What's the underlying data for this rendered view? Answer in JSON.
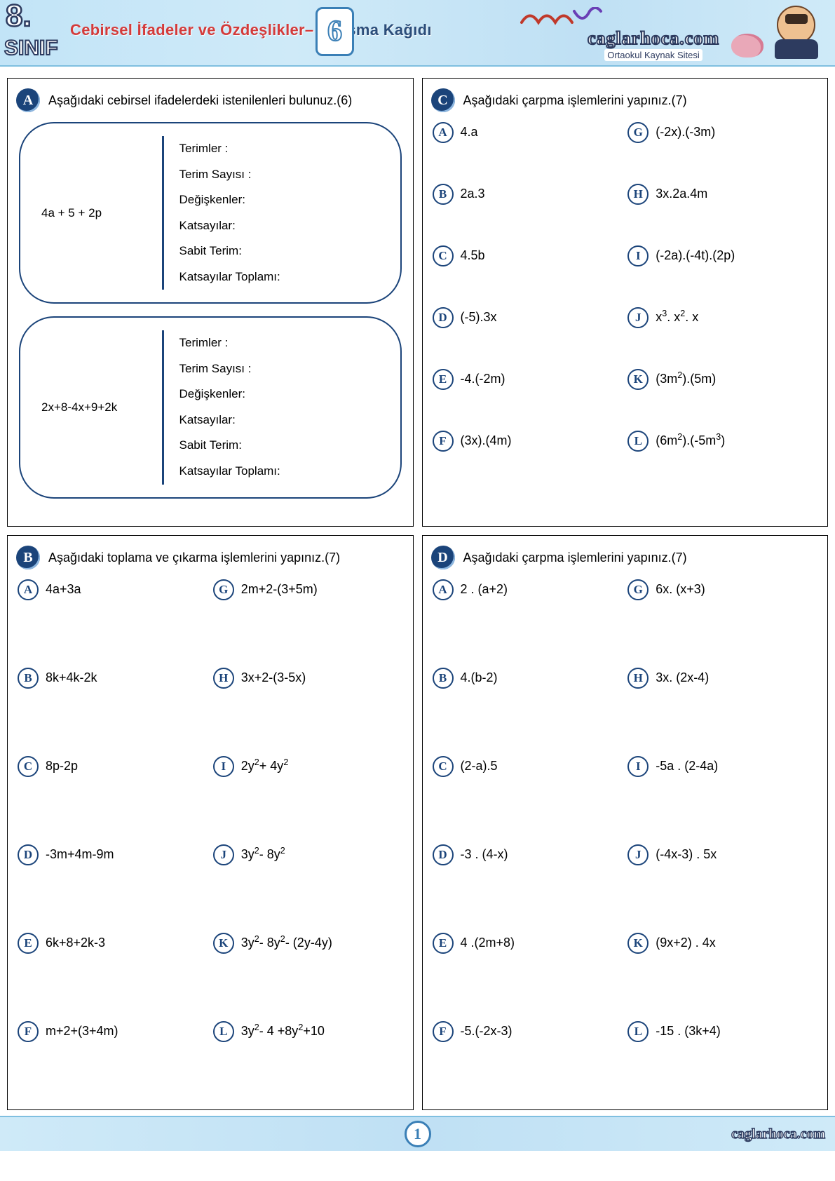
{
  "header": {
    "grade": "8.",
    "class": "SINIF",
    "title_red": "Cebirsel İfadeler ve Özdeşlikler–",
    "title_nav": " Çalışma Kağıdı",
    "sheet_number": "6",
    "site_name": "caglarhoca.com",
    "site_tag": "Ortaokul Kaynak Sitesi"
  },
  "panel_A": {
    "letter": "A",
    "title": "Aşağıdaki cebirsel ifadelerdeki istenilenleri bulunuz.(6)",
    "field_labels": {
      "terimler": "Terimler :",
      "terim_sayisi": "Terim Sayısı :",
      "degiskenler": "Değişkenler:",
      "katsayilar": "Katsayılar:",
      "sabit_terim": "Sabit Terim:",
      "kats_toplam": "Katsayılar Toplamı:"
    },
    "exprs": [
      "4a + 5 + 2p",
      "2x+8-4x+9+2k"
    ]
  },
  "panel_B": {
    "letter": "B",
    "title": "Aşağıdaki toplama ve çıkarma işlemlerini yapınız.(7)",
    "items": [
      {
        "k": "A",
        "t": "4a+3a"
      },
      {
        "k": "G",
        "t": "2m+2-(3+5m)"
      },
      {
        "k": "B",
        "t": "8k+4k-2k"
      },
      {
        "k": "H",
        "t": "3x+2-(3-5x)"
      },
      {
        "k": "C",
        "t": "8p-2p"
      },
      {
        "k": "I",
        "t": "2y²+ 4y²"
      },
      {
        "k": "D",
        "t": "-3m+4m-9m"
      },
      {
        "k": "J",
        "t": "3y²- 8y²"
      },
      {
        "k": "E",
        "t": "6k+8+2k-3"
      },
      {
        "k": "K",
        "t": "3y²- 8y²- (2y-4y)"
      },
      {
        "k": "F",
        "t": "m+2+(3+4m)"
      },
      {
        "k": "L",
        "t": "3y²- 4 +8y²+10"
      }
    ]
  },
  "panel_C": {
    "letter": "C",
    "title": "Aşağıdaki çarpma işlemlerini yapınız.(7)",
    "items": [
      {
        "k": "A",
        "t": "4.a"
      },
      {
        "k": "G",
        "t": "(-2x).(-3m)"
      },
      {
        "k": "B",
        "t": "2a.3"
      },
      {
        "k": "H",
        "t": "3x.2a.4m"
      },
      {
        "k": "C",
        "t": "4.5b"
      },
      {
        "k": "I",
        "t": "(-2a).(-4t).(2p)"
      },
      {
        "k": "D",
        "t": "(-5).3x"
      },
      {
        "k": "J",
        "t": "x³. x². x"
      },
      {
        "k": "E",
        "t": "-4.(-2m)"
      },
      {
        "k": "K",
        "t": "(3m²).(5m)"
      },
      {
        "k": "F",
        "t": "(3x).(4m)"
      },
      {
        "k": "L",
        "t": "(6m²).(-5m³)"
      }
    ]
  },
  "panel_D": {
    "letter": "D",
    "title": "Aşağıdaki çarpma işlemlerini yapınız.(7)",
    "items": [
      {
        "k": "A",
        "t": "2 . (a+2)"
      },
      {
        "k": "G",
        "t": "6x. (x+3)"
      },
      {
        "k": "B",
        "t": "4.(b-2)"
      },
      {
        "k": "H",
        "t": "3x. (2x-4)"
      },
      {
        "k": "C",
        "t": "(2-a).5"
      },
      {
        "k": "I",
        "t": "-5a . (2-4a)"
      },
      {
        "k": "D",
        "t": "-3 . (4-x)"
      },
      {
        "k": "J",
        "t": "(-4x-3) . 5x"
      },
      {
        "k": "E",
        "t": "4 .(2m+8)"
      },
      {
        "k": "K",
        "t": "(9x+2) . 4x"
      },
      {
        "k": "F",
        "t": "-5.(-2x-3)"
      },
      {
        "k": "L",
        "t": "-15 . (3k+4)"
      }
    ]
  },
  "footer": {
    "page_number": "1",
    "site": "caglarhoca.com"
  },
  "colors": {
    "navy": "#1b447a",
    "border_blue": "#3a7fb6",
    "cyan_bg": "#cfeaf8",
    "red": "#d33b3b"
  }
}
